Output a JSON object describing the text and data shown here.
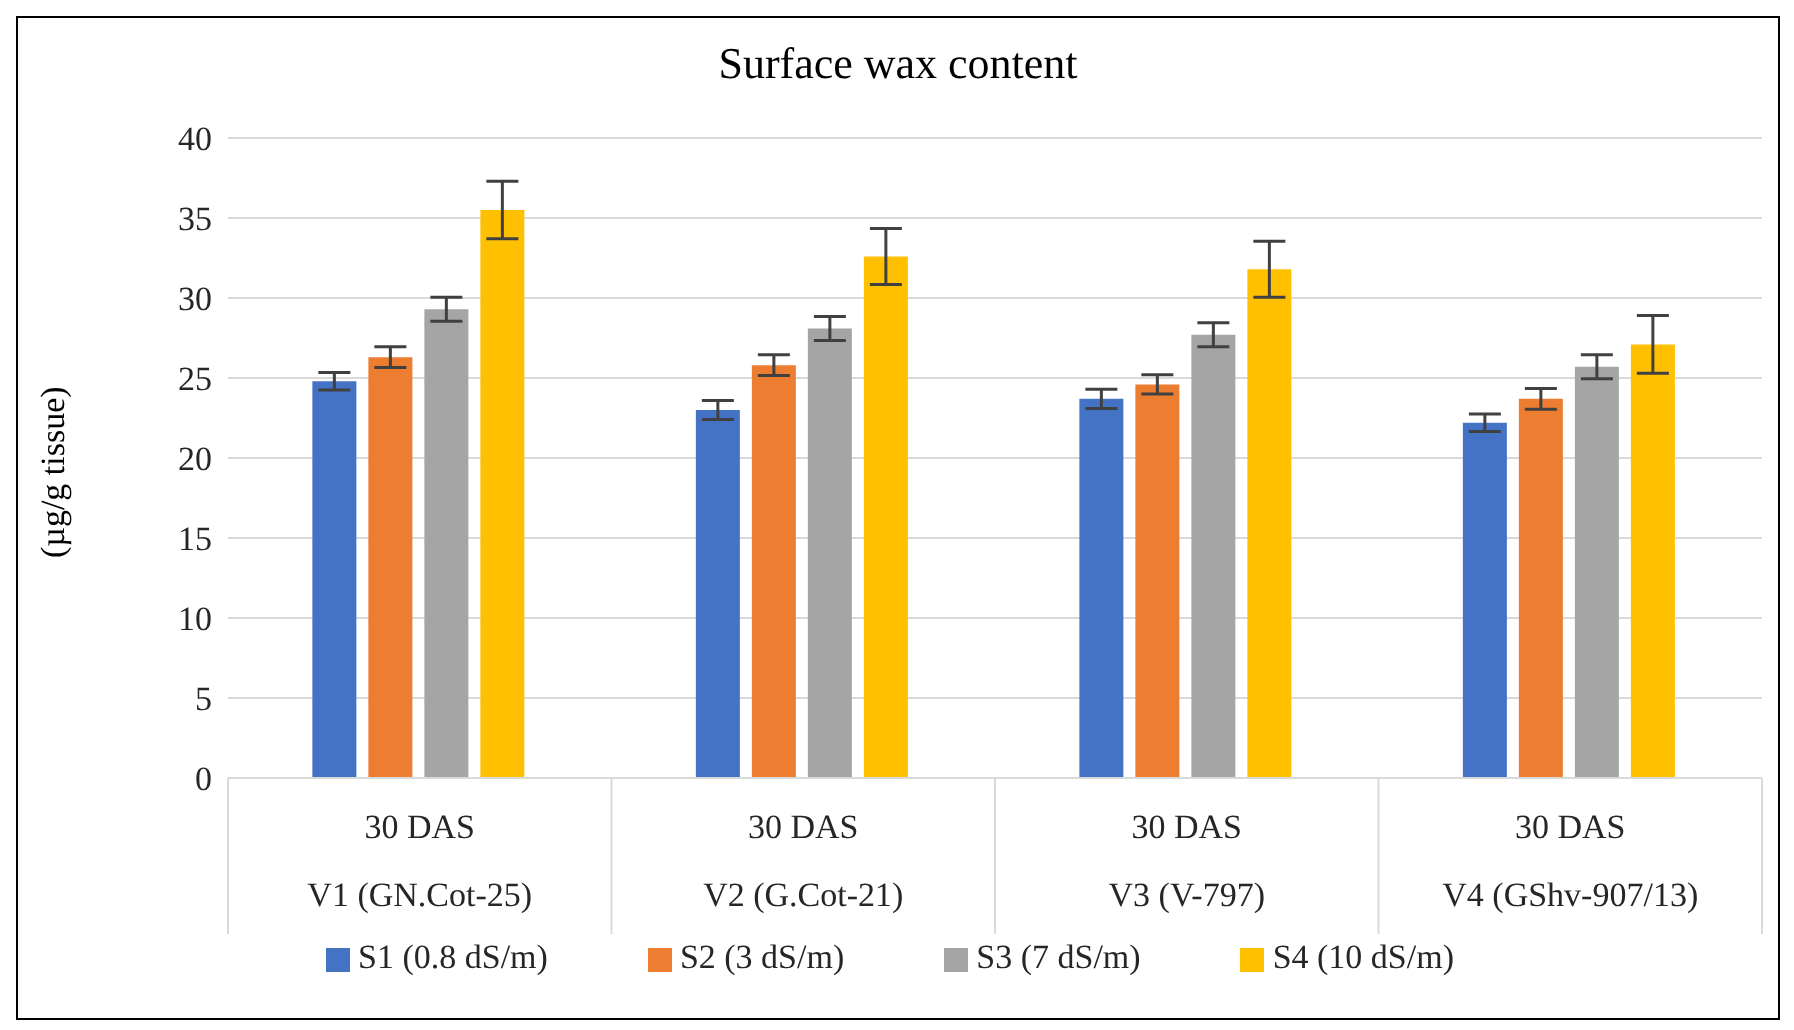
{
  "chart_data": {
    "type": "bar",
    "title": "Surface wax content",
    "ylabel": "(µg/g tissue)",
    "categories": [
      "V1 (GN.Cot-25)",
      "V2 (G.Cot-21)",
      "V3 (V-797)",
      "V4 (GShv-907/13)"
    ],
    "series": [
      {
        "name": "S1 (0.8 dS/m)",
        "color": "#4472c4",
        "values": [
          24.8,
          23.0,
          23.7,
          22.2
        ],
        "errors": [
          0.55,
          0.6,
          0.6,
          0.55
        ]
      },
      {
        "name": "S2 (3 dS/m)",
        "color": "#ed7d31",
        "values": [
          26.3,
          25.8,
          24.6,
          23.7
        ],
        "errors": [
          0.65,
          0.65,
          0.6,
          0.65
        ]
      },
      {
        "name": "S3 (7 dS/m)",
        "color": "#a5a5a5",
        "values": [
          29.3,
          28.1,
          27.7,
          25.7
        ],
        "errors": [
          0.75,
          0.75,
          0.75,
          0.75
        ]
      },
      {
        "name": "S4 (10 dS/m)",
        "color": "#ffc000",
        "values": [
          35.5,
          32.6,
          31.8,
          27.1
        ],
        "errors": [
          1.8,
          1.75,
          1.75,
          1.8
        ]
      }
    ],
    "annotations": [
      "30 DAS",
      "30 DAS",
      "30 DAS",
      "30 DAS"
    ],
    "ylim": [
      0,
      40
    ],
    "yticks": [
      0,
      5,
      10,
      15,
      20,
      25,
      30,
      35,
      40
    ],
    "grid": "y",
    "legend": "bottom"
  }
}
